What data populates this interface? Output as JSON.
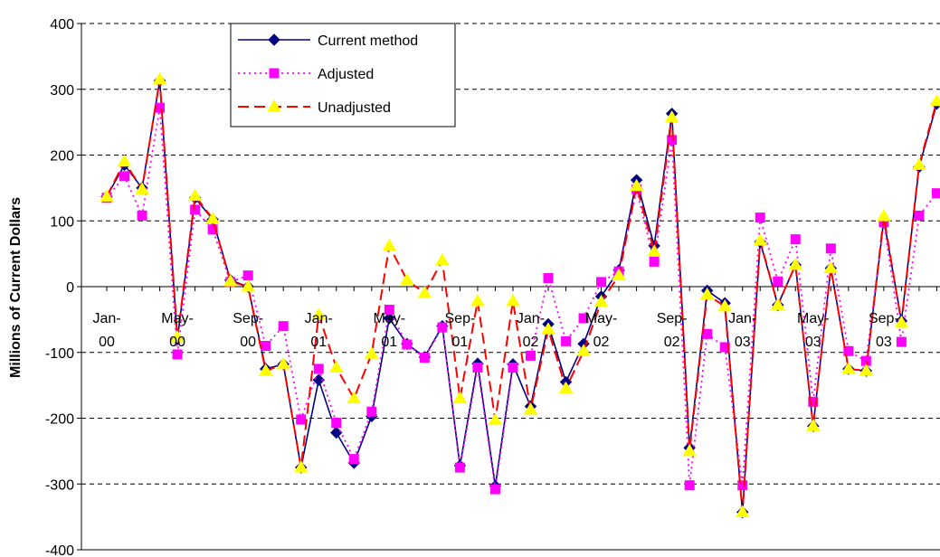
{
  "chart_data": {
    "type": "line",
    "ylabel": "Millions of Current Dollars",
    "ylim": [
      -400,
      400
    ],
    "yticks": [
      400,
      300,
      200,
      100,
      0,
      -100,
      -200,
      -300,
      -400
    ],
    "grid": "horizontal dashed",
    "legend_position": "top-left",
    "x_tick_labels": [
      {
        "index": 0,
        "line1": "Jan-",
        "line2": "00"
      },
      {
        "index": 4,
        "line1": "May-",
        "line2": "00"
      },
      {
        "index": 8,
        "line1": "Sep-",
        "line2": "00"
      },
      {
        "index": 12,
        "line1": "Jan-",
        "line2": "01"
      },
      {
        "index": 16,
        "line1": "May-",
        "line2": "01"
      },
      {
        "index": 20,
        "line1": "Sep-",
        "line2": "01"
      },
      {
        "index": 24,
        "line1": "Jan-",
        "line2": "02"
      },
      {
        "index": 28,
        "line1": "May-",
        "line2": "02"
      },
      {
        "index": 32,
        "line1": "Sep-",
        "line2": "02"
      },
      {
        "index": 36,
        "line1": "Jan-",
        "line2": "03"
      },
      {
        "index": 40,
        "line1": "May-",
        "line2": "03"
      },
      {
        "index": 44,
        "line1": "Sep-",
        "line2": "03"
      }
    ],
    "series": [
      {
        "name": "Current method",
        "color": "#000080",
        "marker": "diamond",
        "line": "solid",
        "values": [
          137,
          185,
          150,
          313,
          -80,
          135,
          102,
          10,
          0,
          -125,
          -118,
          -275,
          -142,
          -222,
          -268,
          -197,
          -48,
          -87,
          -107,
          -60,
          -272,
          -117,
          -303,
          -118,
          -182,
          -57,
          -145,
          -87,
          -15,
          25,
          162,
          62,
          263,
          -245,
          -6,
          -25,
          -343,
          68,
          -28,
          33,
          -212,
          28,
          -125,
          -128,
          102,
          -52,
          182,
          278
        ]
      },
      {
        "name": "Adjusted",
        "color": "#FF00FF",
        "marker": "square",
        "line": "dotted",
        "values": [
          135,
          168,
          108,
          272,
          -103,
          117,
          87,
          7,
          17,
          -90,
          -60,
          -202,
          -125,
          -207,
          -262,
          -190,
          -35,
          -88,
          -108,
          -62,
          -275,
          -123,
          -308,
          -123,
          -105,
          13,
          -83,
          -48,
          7,
          23,
          148,
          38,
          223,
          -302,
          -72,
          -92,
          -302,
          105,
          8,
          72,
          -175,
          58,
          -98,
          -113,
          98,
          -84,
          108,
          142
        ]
      },
      {
        "name": "Unadjusted",
        "color": "#FF0000",
        "marker_fill": "#FFFF00",
        "marker": "triangle",
        "line": "dashed",
        "values": [
          137,
          190,
          148,
          315,
          -77,
          138,
          103,
          8,
          0,
          -128,
          -118,
          -275,
          -43,
          -123,
          -170,
          -102,
          62,
          10,
          -10,
          40,
          -170,
          -22,
          -203,
          -22,
          -187,
          -65,
          -155,
          -98,
          -23,
          17,
          153,
          53,
          257,
          -250,
          -12,
          -30,
          -343,
          70,
          -28,
          33,
          -212,
          28,
          -125,
          -128,
          107,
          -55,
          185,
          282
        ]
      }
    ]
  }
}
